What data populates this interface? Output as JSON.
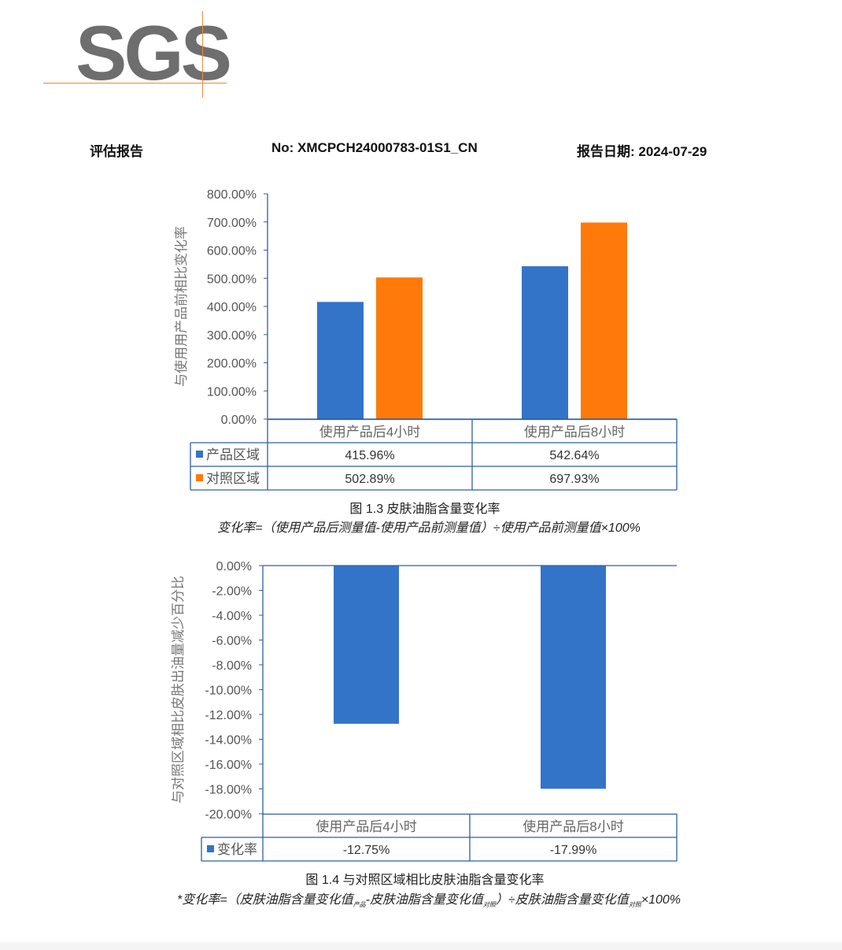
{
  "logo": {
    "text": "SGS"
  },
  "header": {
    "left": "评估报告",
    "center": "No: XMCPCH24000783-01S1_CN",
    "right": "报告日期: 2024-07-29"
  },
  "colors": {
    "blue": "#3374c8",
    "orange": "#ff7a0a",
    "axis": "#2e5fa6",
    "text": "#555555"
  },
  "chart_data": [
    {
      "type": "bar",
      "ylabel": "与使用用产品前相比变化率",
      "ylim": [
        0,
        800
      ],
      "yticks": [
        "800.00%",
        "700.00%",
        "600.00%",
        "500.00%",
        "400.00%",
        "300.00%",
        "200.00%",
        "100.00%",
        "0.00%"
      ],
      "yvalues": [
        800,
        700,
        600,
        500,
        400,
        300,
        200,
        100,
        0
      ],
      "categories": [
        "使用产品后4小时",
        "使用产品后8小时"
      ],
      "series": [
        {
          "name": "产品区域",
          "values": [
            415.96,
            542.64
          ],
          "labels": [
            "415.96%",
            "542.64%"
          ],
          "color": "#3374c8"
        },
        {
          "name": "对照区域",
          "values": [
            502.89,
            697.93
          ],
          "labels": [
            "502.89%",
            "697.93%"
          ],
          "color": "#ff7a0a"
        }
      ],
      "legend": "data-table",
      "caption": "图 1.3 皮肤油脂含量变化率",
      "formula": "变化率=（使用产品后测量值-使用产品前测量值）÷使用产品前测量值×100%"
    },
    {
      "type": "bar",
      "ylabel": "与对照区域相比皮肤出油量减少百分比",
      "ylim": [
        -20,
        0
      ],
      "yticks": [
        "0.00%",
        "-2.00%",
        "-4.00%",
        "-6.00%",
        "-8.00%",
        "-10.00%",
        "-12.00%",
        "-14.00%",
        "-16.00%",
        "-18.00%",
        "-20.00%"
      ],
      "yvalues": [
        0,
        -2,
        -4,
        -6,
        -8,
        -10,
        -12,
        -14,
        -16,
        -18,
        -20
      ],
      "categories": [
        "使用产品后4小时",
        "使用产品后8小时"
      ],
      "series": [
        {
          "name": "变化率",
          "values": [
            -12.75,
            -17.99
          ],
          "labels": [
            "-12.75%",
            "-17.99%"
          ],
          "color": "#3374c8"
        }
      ],
      "legend": "data-table",
      "caption": "图 1.4 与对照区域相比皮肤油脂含量变化率",
      "formula_parts": {
        "a": "*变化率=（皮肤油脂含量变化值",
        "s1": "产品",
        "b": "-皮肤油脂含量变化值",
        "s2": "对照",
        "c": "）÷皮肤油脂含量变化值",
        "s3": "对照",
        "d": "×100%"
      }
    }
  ]
}
